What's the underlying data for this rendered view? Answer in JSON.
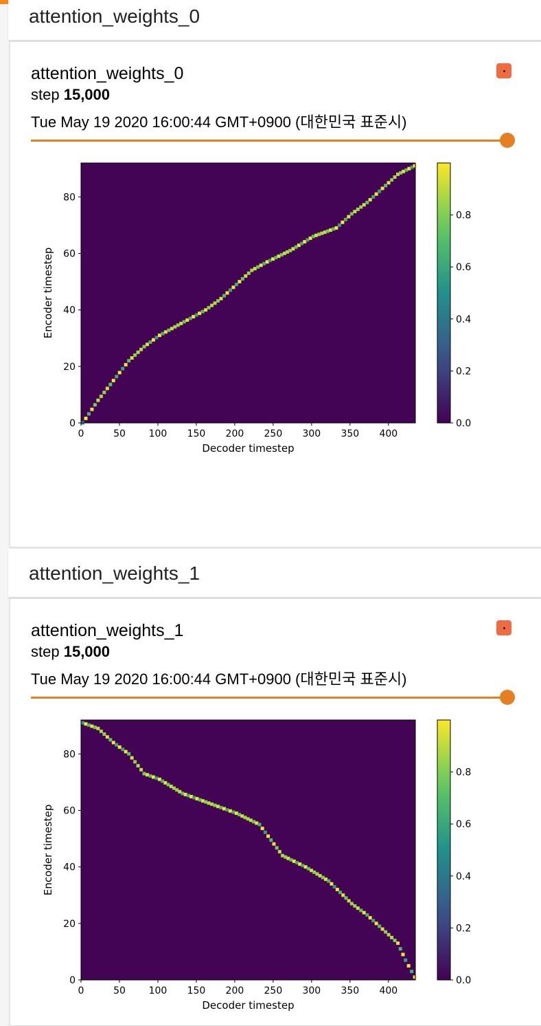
{
  "panels": [
    {
      "section_title": "attention_weights_0",
      "card_title": "attention_weights_0",
      "step_label": "step",
      "step_value": "15,000",
      "timestamp": "Tue May 19 2020 16:00:44 GMT+0900 (대한민국 표준시)",
      "chart_data": {
        "type": "heatmap",
        "xlabel": "Decoder timestep",
        "ylabel": "Encoder timestep",
        "xlim": [
          0,
          435
        ],
        "ylim": [
          0,
          92
        ],
        "xticks": [
          0,
          50,
          100,
          150,
          200,
          250,
          300,
          350,
          400
        ],
        "yticks": [
          0,
          20,
          40,
          60,
          80
        ],
        "colorbar": {
          "ticks": [
            "0.0",
            "0.2",
            "0.4",
            "0.6",
            "0.8"
          ],
          "range": [
            0,
            1
          ],
          "colormap": "viridis"
        },
        "alignment": [
          [
            0,
            0
          ],
          [
            20,
            8
          ],
          [
            40,
            15
          ],
          [
            60,
            22
          ],
          [
            80,
            27
          ],
          [
            100,
            31
          ],
          [
            120,
            34
          ],
          [
            140,
            37
          ],
          [
            160,
            40
          ],
          [
            180,
            44
          ],
          [
            200,
            49
          ],
          [
            220,
            54
          ],
          [
            240,
            57
          ],
          [
            270,
            61
          ],
          [
            300,
            66
          ],
          [
            330,
            69
          ],
          [
            350,
            74
          ],
          [
            370,
            78
          ],
          [
            390,
            83
          ],
          [
            410,
            88
          ],
          [
            432,
            91
          ]
        ]
      }
    },
    {
      "section_title": "attention_weights_1",
      "card_title": "attention_weights_1",
      "step_label": "step",
      "step_value": "15,000",
      "timestamp": "Tue May 19 2020 16:00:44 GMT+0900 (대한민국 표준시)",
      "chart_data": {
        "type": "heatmap",
        "xlabel": "Decoder timestep",
        "ylabel": "Encoder timestep",
        "xlim": [
          0,
          435
        ],
        "ylim": [
          0,
          92
        ],
        "xticks": [
          0,
          50,
          100,
          150,
          200,
          250,
          300,
          350,
          400
        ],
        "yticks": [
          0,
          20,
          40,
          60,
          80
        ],
        "colorbar": {
          "ticks": [
            "0.0",
            "0.2",
            "0.4",
            "0.6",
            "0.8"
          ],
          "range": [
            0,
            1
          ],
          "colormap": "viridis"
        },
        "alignment": [
          [
            0,
            91
          ],
          [
            20,
            89
          ],
          [
            40,
            84
          ],
          [
            60,
            80
          ],
          [
            80,
            73
          ],
          [
            100,
            71
          ],
          [
            130,
            66
          ],
          [
            160,
            63
          ],
          [
            200,
            59
          ],
          [
            230,
            55
          ],
          [
            260,
            44
          ],
          [
            290,
            40
          ],
          [
            320,
            35
          ],
          [
            350,
            27
          ],
          [
            370,
            23
          ],
          [
            390,
            18
          ],
          [
            410,
            13
          ],
          [
            420,
            7
          ],
          [
            432,
            1
          ]
        ]
      }
    }
  ],
  "colors": {
    "accent": "#e67e22",
    "viridis_low": "#440154",
    "viridis_high": "#fde725"
  }
}
